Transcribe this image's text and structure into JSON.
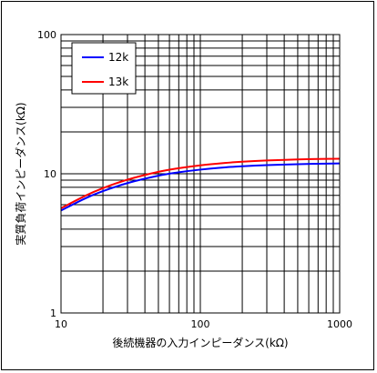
{
  "chart_data": {
    "type": "line",
    "title": "",
    "xlabel": "後続機器の入力インピーダンス(kΩ)",
    "ylabel": "実質負荷インピーダンス(kΩ)",
    "xscale": "log",
    "yscale": "log",
    "xlim": [
      10,
      1000
    ],
    "ylim": [
      1,
      100
    ],
    "x_ticks": [
      "10",
      "100",
      "1000"
    ],
    "y_ticks": [
      "1",
      "10",
      "100"
    ],
    "grid": true,
    "legend_position": "top-left",
    "series": [
      {
        "name": "12k",
        "color": "#0000ff",
        "x": [
          10,
          15,
          20,
          30,
          50,
          70,
          100,
          150,
          200,
          300,
          500,
          700,
          1000
        ],
        "y": [
          5.45,
          6.67,
          7.5,
          8.57,
          9.68,
          10.24,
          10.71,
          11.11,
          11.32,
          11.54,
          11.72,
          11.8,
          11.86
        ]
      },
      {
        "name": "13k",
        "color": "#ff0000",
        "x": [
          10,
          15,
          20,
          30,
          50,
          70,
          100,
          150,
          200,
          300,
          500,
          700,
          1000
        ],
        "y": [
          5.65,
          6.96,
          7.88,
          9.07,
          10.32,
          10.96,
          11.5,
          11.96,
          12.21,
          12.46,
          12.67,
          12.77,
          12.83
        ]
      }
    ]
  }
}
